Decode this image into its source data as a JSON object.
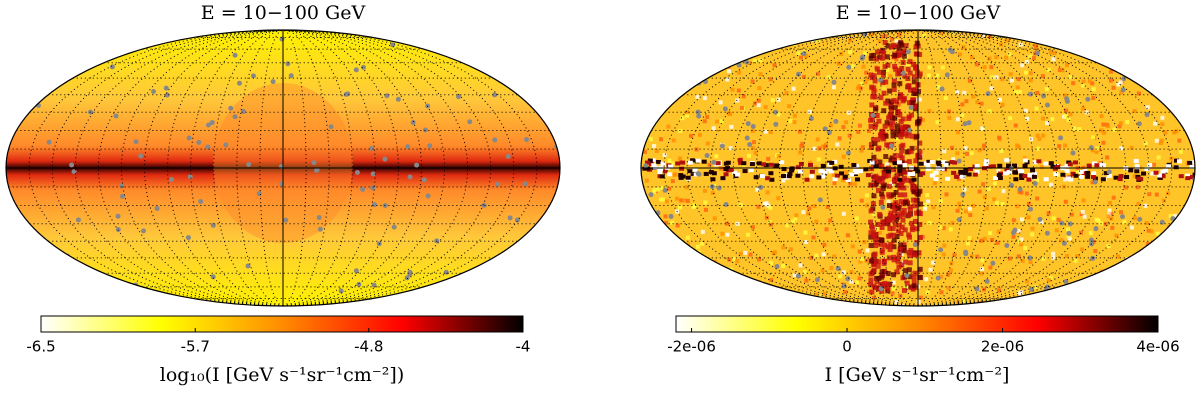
{
  "chart_data": [
    {
      "type": "skymap",
      "title": "E = 10−100 GeV",
      "colorbar_label": "log₁₀(I [GeV s⁻¹sr⁻¹cm⁻²])",
      "clim": [
        -6.5,
        -4
      ],
      "cticks": [
        -6.5,
        -5.7,
        -4.8,
        -4
      ],
      "colors": [
        "#ffffff",
        "#ffff00",
        "#ff8c00",
        "#ff0000",
        "#000000"
      ]
    },
    {
      "type": "skymap",
      "title": "E = 10−100 GeV",
      "colorbar_label": "I [GeV s⁻¹sr⁻¹cm⁻²]",
      "clim": [
        -2.2e-06,
        4e-06
      ],
      "cticks": [
        {
          "value": -2e-06,
          "label": "-2e-06"
        },
        0,
        {
          "value": 2e-06,
          "label": "2e-06"
        },
        {
          "value": 4e-06,
          "label": "4e-06"
        }
      ],
      "colors": [
        "#ffffff",
        "#ffff00",
        "#ff8c00",
        "#ff0000",
        "#000000"
      ]
    }
  ]
}
